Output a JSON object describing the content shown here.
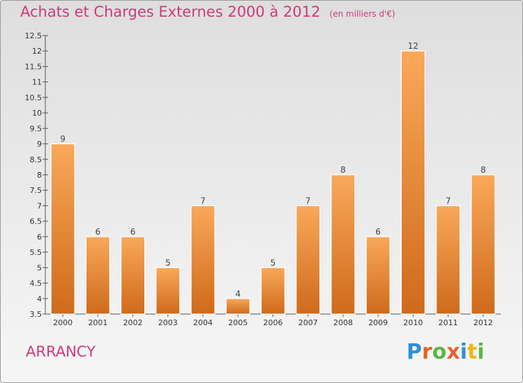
{
  "header": {
    "title": "Achats et Charges Externes 2000 à 2012",
    "unit": "(en milliers d'€)"
  },
  "footer": {
    "commune": "ARRANCY",
    "brand": "Proxiti"
  },
  "colors": {
    "accent_text": "#d0397b",
    "bar_top": "#f9a85a",
    "bar_bottom": "#cf6a1b",
    "brand_letters": [
      "#2f8fd8",
      "#e8622c",
      "#5ab648",
      "#e8622c",
      "#2f8fd8",
      "#f1b419",
      "#5ab648"
    ]
  },
  "chart_data": {
    "type": "bar",
    "categories": [
      "2000",
      "2001",
      "2002",
      "2003",
      "2004",
      "2005",
      "2006",
      "2007",
      "2008",
      "2009",
      "2010",
      "2011",
      "2012"
    ],
    "values": [
      9,
      6,
      6,
      5,
      7,
      4,
      5,
      7,
      8,
      6,
      12,
      7,
      8
    ],
    "data_labels": [
      "9",
      "6",
      "6",
      "5",
      "7",
      "4",
      "5",
      "7",
      "8",
      "6",
      "12",
      "7",
      "8"
    ],
    "ylim": [
      3.5,
      12.5
    ],
    "y_ticks": [
      3.5,
      4,
      4.5,
      5,
      5.5,
      6,
      6.5,
      7,
      7.5,
      8,
      8.5,
      9,
      9.5,
      10,
      10.5,
      11,
      11.5,
      12,
      12.5
    ],
    "y_tick_labels": [
      "3.5",
      "4",
      "4.5",
      "5",
      "5.5",
      "6",
      "6.5",
      "7",
      "7.5",
      "8",
      "8.5",
      "9",
      "9.5",
      "10",
      "10.5",
      "11",
      "11.5",
      "12",
      "12.5"
    ],
    "title": "Achats et Charges Externes 2000 à 2012",
    "xlabel": "",
    "ylabel": "",
    "grid": false,
    "legend": "none"
  }
}
